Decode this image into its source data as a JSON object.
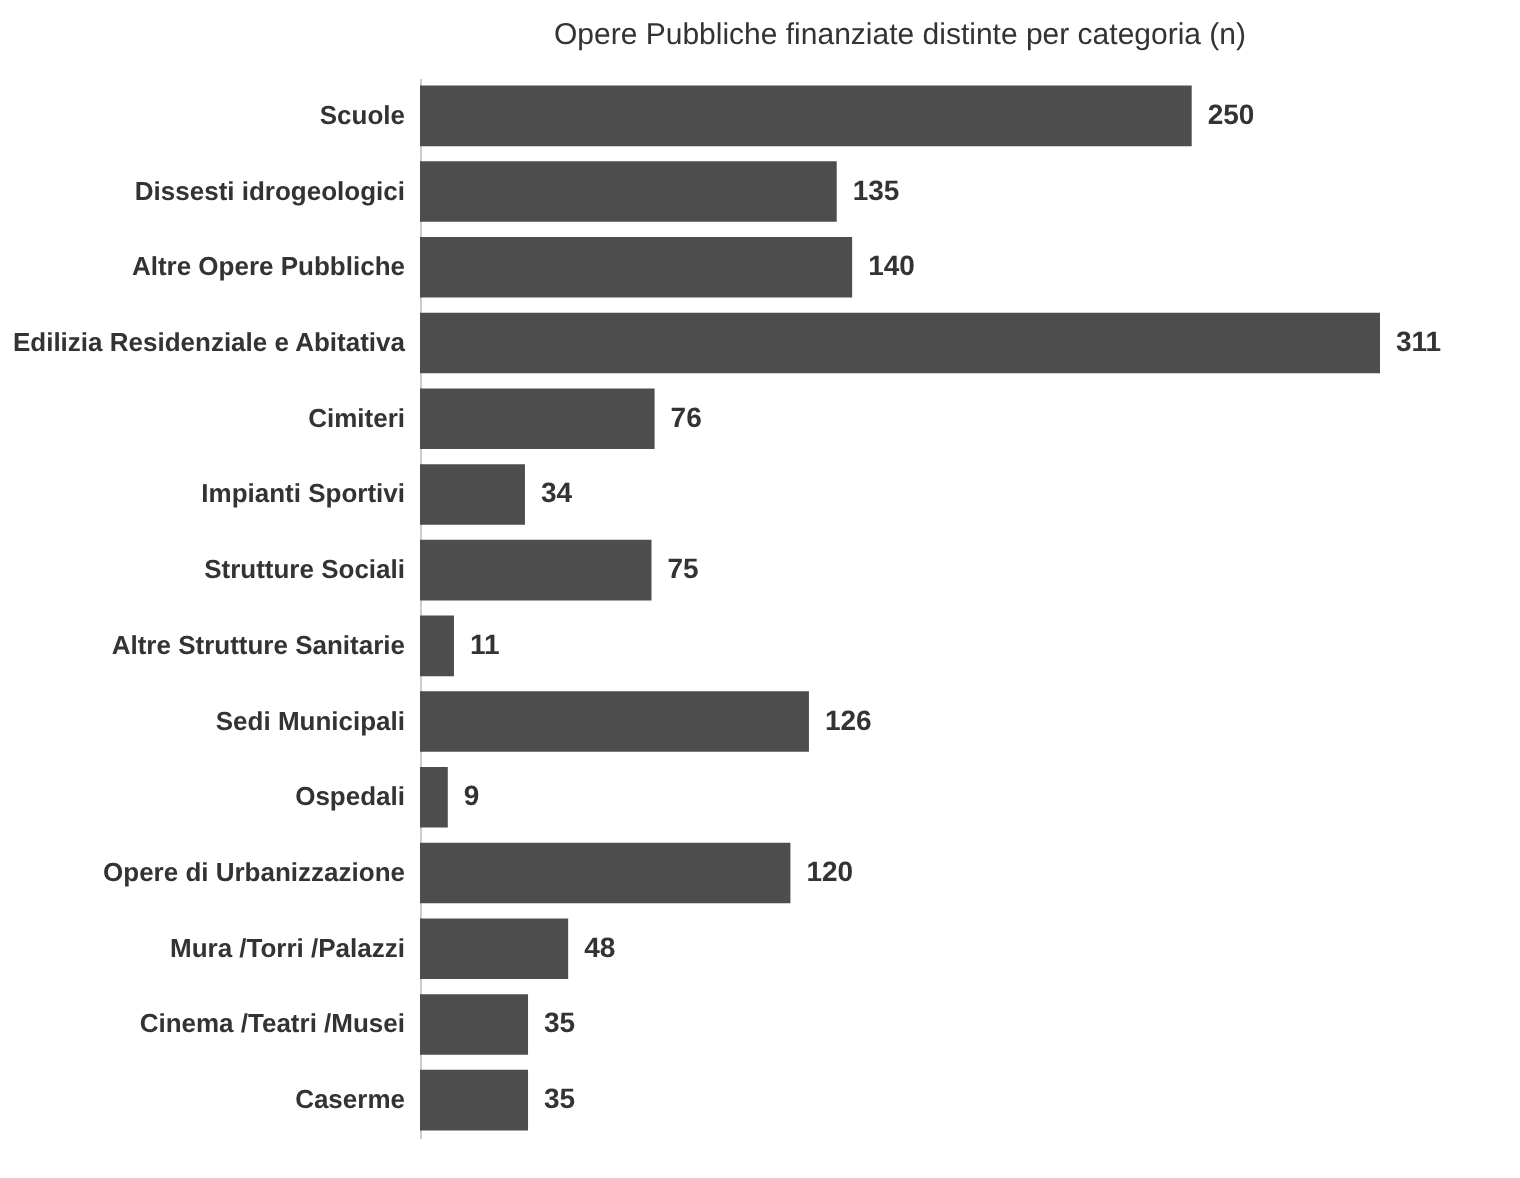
{
  "chart_data": {
    "type": "bar",
    "orientation": "horizontal",
    "title": "Opere Pubbliche finanziate distinte per categoria  (n)",
    "categories": [
      "Scuole",
      "Dissesti idrogeologici",
      "Altre Opere Pubbliche",
      "Edilizia Residenziale e Abitativa",
      "Cimiteri",
      "Impianti Sportivi",
      "Strutture Sociali",
      "Altre Strutture Sanitarie",
      "Sedi Municipali",
      "Ospedali",
      "Opere di Urbanizzazione",
      "Mura /Torri /Palazzi",
      "Cinema /Teatri /Musei",
      "Caserme"
    ],
    "values": [
      250,
      135,
      140,
      311,
      76,
      34,
      75,
      11,
      126,
      9,
      120,
      48,
      35,
      35
    ],
    "color": "#4d4d4d",
    "data_labels": true
  }
}
